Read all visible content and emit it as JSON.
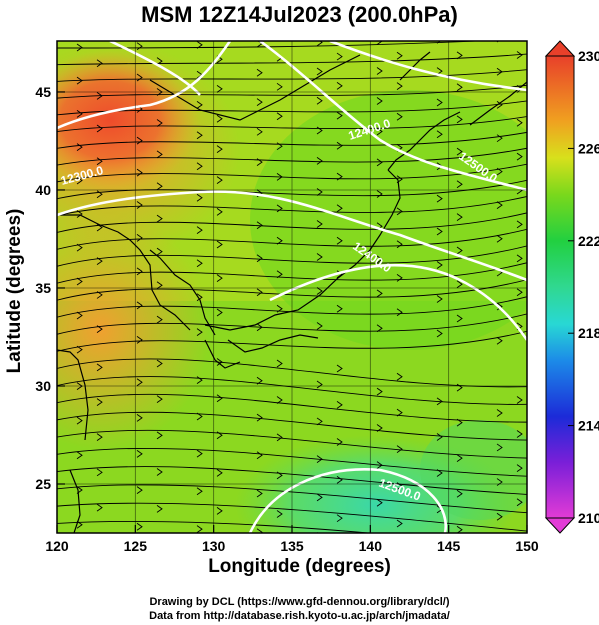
{
  "title": "MSM 12Z14Jul2023 (200.0hPa)",
  "xlabel": "Longitude (degrees)",
  "ylabel": "Latitude  (degrees)",
  "credits": [
    "Drawing by DCL (https://www.gfd-dennou.org/library/dcl/)",
    "Data from http://database.rish.kyoto-u.ac.jp/arch/jmadata/"
  ],
  "x_ticks": [
    "120",
    "125",
    "130",
    "135",
    "140",
    "145",
    "150"
  ],
  "y_ticks": [
    "25",
    "30",
    "35",
    "40",
    "45"
  ],
  "colorbar": {
    "min": 210,
    "max": 230,
    "ticks": [
      "230",
      "226",
      "222",
      "218",
      "214",
      "210"
    ]
  },
  "contour_labels": [
    "12300.0",
    "12400.0",
    "12500.0",
    "12400.0",
    "12500.0"
  ],
  "map": {
    "lon_range": [
      120,
      150
    ],
    "lat_range": [
      22.5,
      47.6
    ],
    "field": "temperature (K) with streamlines and height contours"
  }
}
